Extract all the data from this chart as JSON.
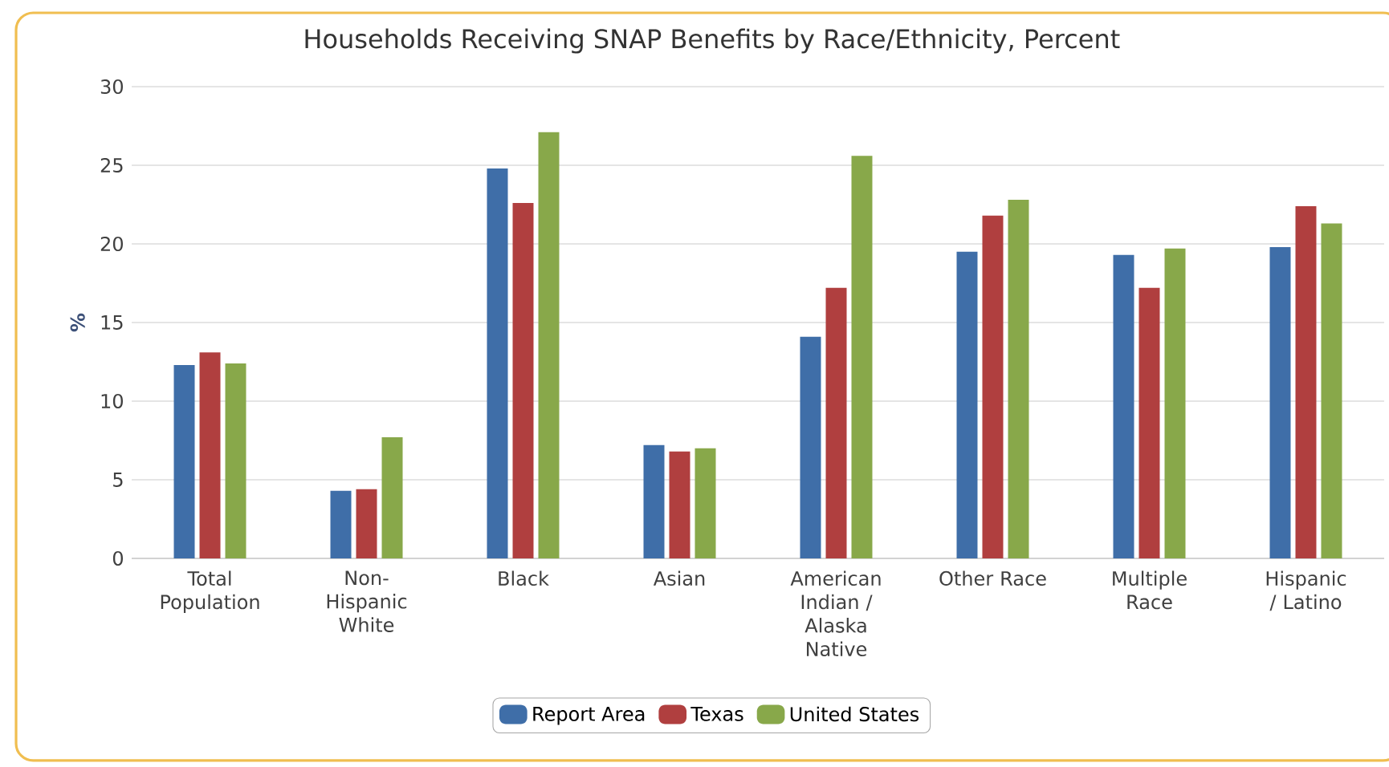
{
  "chart_data": {
    "type": "bar",
    "title": "Households Receiving SNAP Benefits by Race/Ethnicity, Percent",
    "ylabel": "%",
    "categories": [
      "Total Population",
      "Non-Hispanic White",
      "Black",
      "Asian",
      "American Indian / Alaska Native",
      "Other Race",
      "Multiple Race",
      "Hispanic / Latino"
    ],
    "series": [
      {
        "name": "Report Area",
        "color": "#3f6ea8",
        "values": [
          12.3,
          4.3,
          24.8,
          7.2,
          14.1,
          19.5,
          19.3,
          19.8
        ]
      },
      {
        "name": "Texas",
        "color": "#b03f3f",
        "values": [
          13.1,
          4.4,
          22.6,
          6.8,
          17.2,
          21.8,
          17.2,
          22.4
        ]
      },
      {
        "name": "United States",
        "color": "#88a84a",
        "values": [
          12.4,
          7.7,
          27.1,
          7.0,
          25.6,
          22.8,
          19.7,
          21.3
        ]
      }
    ],
    "ylim": [
      0,
      30
    ],
    "yticks": [
      0,
      5,
      10,
      15,
      20,
      25,
      30
    ],
    "grid": "y",
    "legend": "bottom"
  }
}
